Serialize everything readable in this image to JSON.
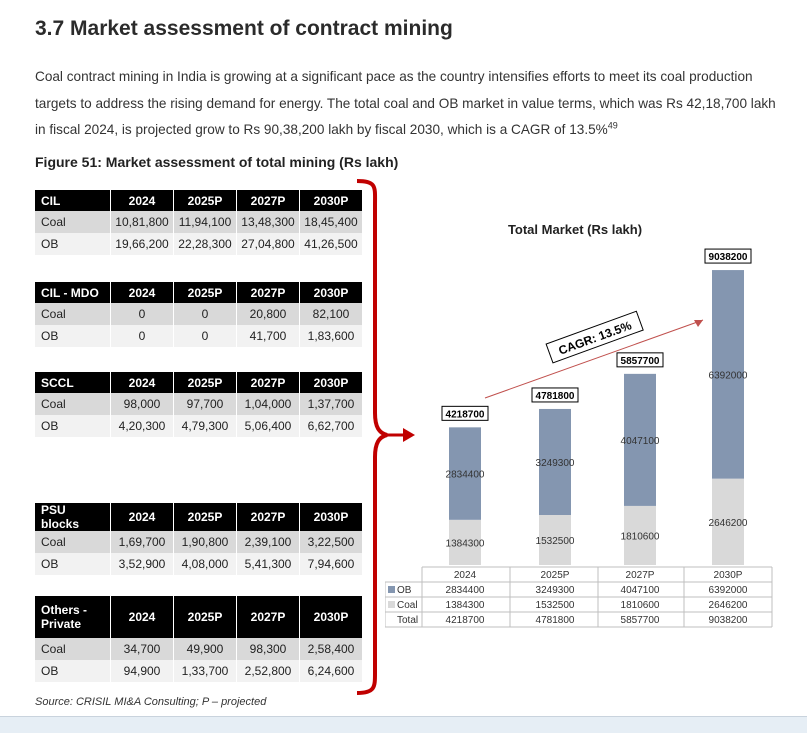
{
  "heading": "3.7 Market assessment of contract mining",
  "paragraph": "Coal contract mining in India is growing at a significant pace as the country intensifies efforts to meet its coal production targets to address the rising demand for energy. The total coal and OB market in value terms, which was Rs 42,18,700 lakh in fiscal 2024, is projected grow to Rs 90,38,200 lakh by fiscal 2030, which is a CAGR of 13.5%",
  "paragraph_footnote": "49",
  "figure_title": "Figure 51: Market assessment of total mining (Rs lakh)",
  "tables": [
    {
      "header": [
        "CIL",
        "2024",
        "2025P",
        "2027P",
        "2030P"
      ],
      "rows": [
        [
          "Coal",
          "10,81,800",
          "11,94,100",
          "13,48,300",
          "18,45,400"
        ],
        [
          "OB",
          "19,66,200",
          "22,28,300",
          "27,04,800",
          "41,26,500"
        ]
      ]
    },
    {
      "header": [
        "CIL - MDO",
        "2024",
        "2025P",
        "2027P",
        "2030P"
      ],
      "rows": [
        [
          "Coal",
          "0",
          "0",
          "20,800",
          "82,100"
        ],
        [
          "OB",
          "0",
          "0",
          "41,700",
          "1,83,600"
        ]
      ]
    },
    {
      "header": [
        "SCCL",
        "2024",
        "2025P",
        "2027P",
        "2030P"
      ],
      "rows": [
        [
          "Coal",
          "98,000",
          "97,700",
          "1,04,000",
          "1,37,700"
        ],
        [
          "OB",
          "4,20,300",
          "4,79,300",
          "5,06,400",
          "6,62,700"
        ]
      ]
    },
    {
      "header": [
        "PSU blocks",
        "2024",
        "2025P",
        "2027P",
        "2030P"
      ],
      "rows": [
        [
          "Coal",
          "1,69,700",
          "1,90,800",
          "2,39,100",
          "3,22,500"
        ],
        [
          "OB",
          "3,52,900",
          "4,08,000",
          "5,41,300",
          "7,94,600"
        ]
      ]
    },
    {
      "header": [
        "Others - Private",
        "2024",
        "2025P",
        "2027P",
        "2030P"
      ],
      "rows": [
        [
          "Coal",
          "34,700",
          "49,900",
          "98,300",
          "2,58,400"
        ],
        [
          "OB",
          "94,900",
          "1,33,700",
          "2,52,800",
          "6,24,600"
        ]
      ]
    }
  ],
  "source": "Source: CRISIL MI&A Consulting; P – projected",
  "colors": {
    "ob": "#8496b0",
    "coal": "#d9d9d9",
    "bracket": "#c00000",
    "arrow": "#c0504d"
  },
  "chart_data": {
    "type": "bar",
    "stacked": true,
    "title": "Total Market (Rs lakh)",
    "categories": [
      "2024",
      "2025P",
      "2027P",
      "2030P"
    ],
    "series": [
      {
        "name": "OB",
        "values": [
          2834400,
          3249300,
          4047100,
          6392000
        ]
      },
      {
        "name": "Coal",
        "values": [
          1384300,
          1532500,
          1810600,
          2646200
        ]
      }
    ],
    "totals": [
      4218700,
      4781800,
      5857700,
      9038200
    ],
    "total_label": "Total",
    "annotation": "CAGR: 13.5%",
    "ylim": [
      0,
      9500000
    ],
    "grid": false,
    "legend": "data-table"
  }
}
